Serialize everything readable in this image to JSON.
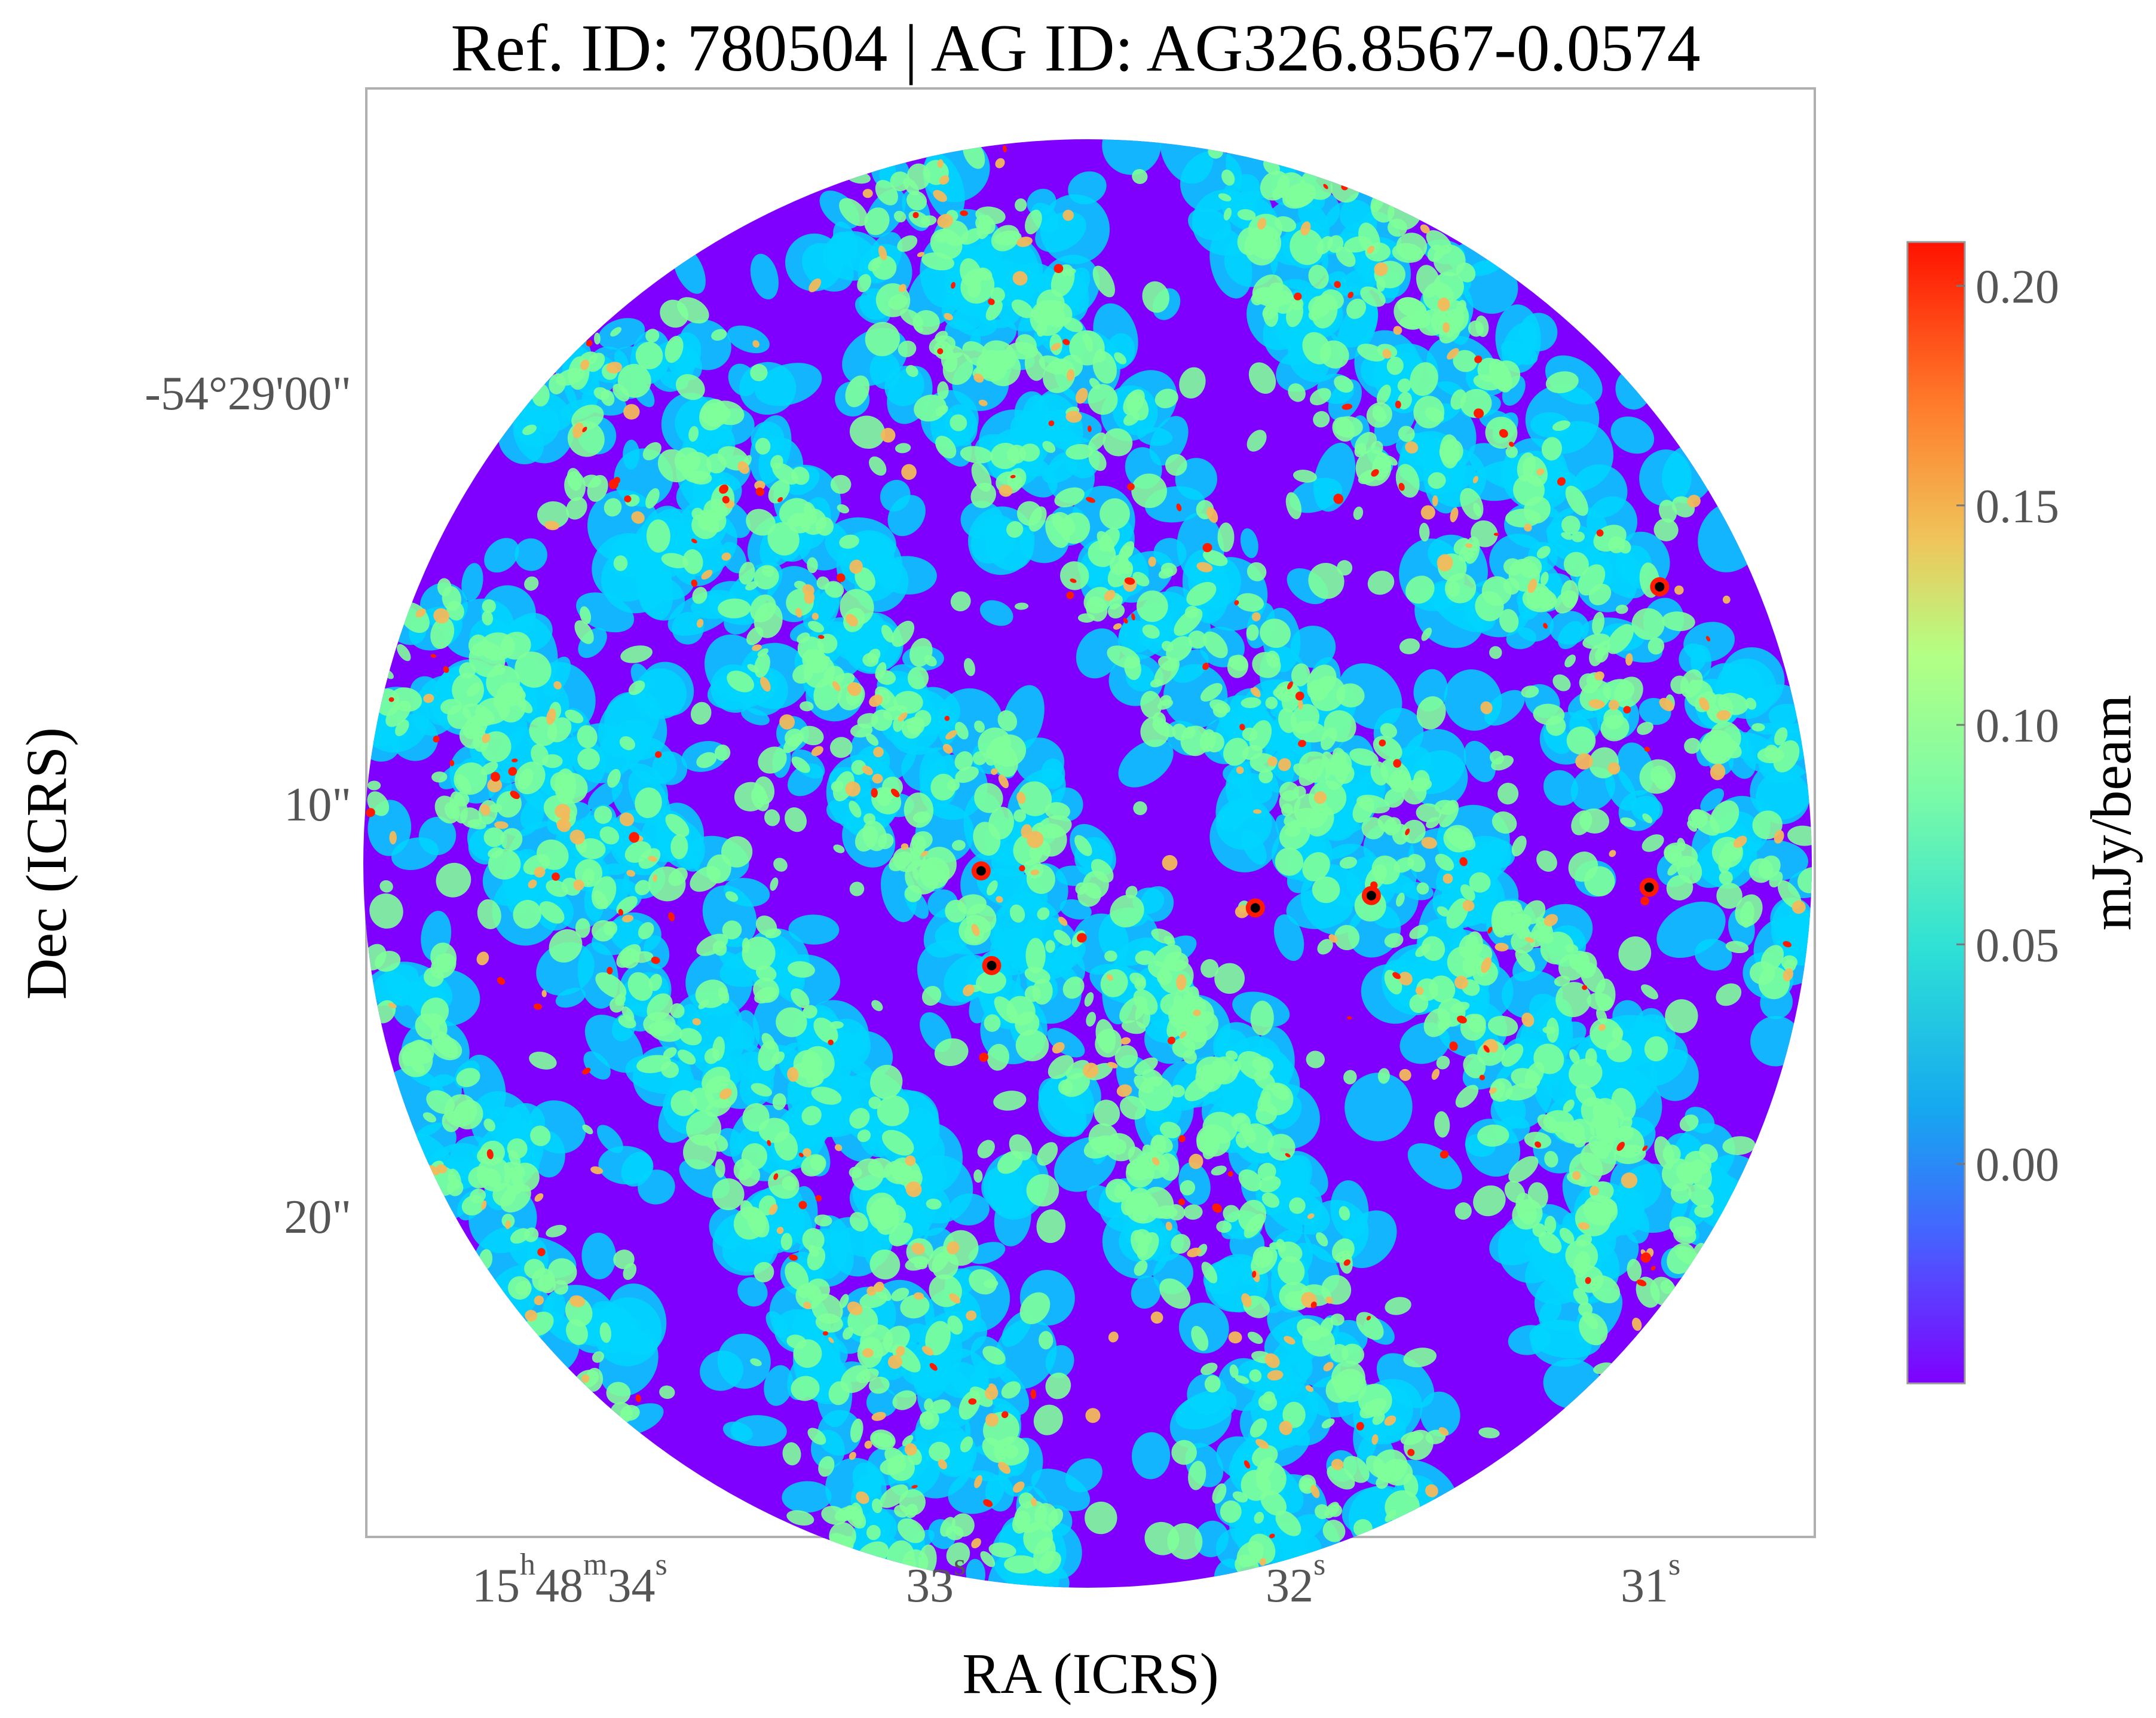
{
  "chart_data": {
    "type": "heatmap",
    "title": "Ref. ID: 780504 | AG ID: AG326.8567-0.0574",
    "xlabel": "RA (ICRS)",
    "ylabel": "Dec (ICRS)",
    "x_ticks": [
      {
        "h": "15",
        "m": "48",
        "s": "34",
        "label": "15h48m34s"
      },
      {
        "s": "33",
        "label": "33s"
      },
      {
        "s": "32",
        "label": "32s"
      },
      {
        "s": "31",
        "label": "31s"
      }
    ],
    "y_ticks": [
      "-54°29'00\"",
      "10\"",
      "20\""
    ],
    "colorbar": {
      "label": "mJy/beam",
      "colormap": "rainbow",
      "min": -0.05,
      "max": 0.21,
      "ticks": [
        {
          "value": 0.2,
          "label": "0.20"
        },
        {
          "value": 0.15,
          "label": "0.15"
        },
        {
          "value": 0.1,
          "label": "0.10"
        },
        {
          "value": 0.05,
          "label": "0.05"
        },
        {
          "value": 0.0,
          "label": "0.00"
        }
      ]
    },
    "colors": {
      "low": "#7f00ff",
      "cyan": "#00d5ff",
      "green": "#7fff9a",
      "high": "#ff1a00",
      "peak": "#000000",
      "frame": "#b0b0b0"
    },
    "bright_sources": [
      {
        "ra_s": 32.96,
        "dec_arcsec": 11.5
      },
      {
        "ra_s": 32.93,
        "dec_arcsec": 13.8
      },
      {
        "ra_s": 32.18,
        "dec_arcsec": 12.4
      },
      {
        "ra_s": 31.85,
        "dec_arcsec": 12.1
      },
      {
        "ra_s": 31.06,
        "dec_arcsec": 11.9
      },
      {
        "ra_s": 31.03,
        "dec_arcsec": 4.6
      }
    ]
  }
}
